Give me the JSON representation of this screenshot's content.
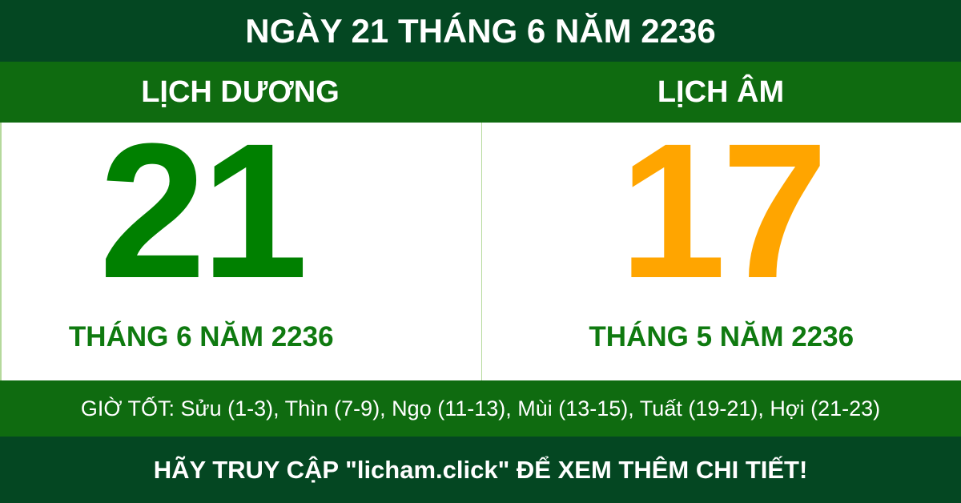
{
  "title": "NGÀY 21 THÁNG 6 NĂM 2236",
  "solar": {
    "label": "LỊCH DƯƠNG",
    "day": "21",
    "month_year": "THÁNG 6 NĂM 2236"
  },
  "lunar": {
    "label": "LỊCH ÂM",
    "day": "17",
    "month_year": "THÁNG 5 NĂM 2236"
  },
  "good_hours": "GIỜ TỐT: Sửu (1-3), Thìn (7-9), Ngọ (11-13), Mùi (13-15), Tuất (19-21), Hợi (21-23)",
  "footer": "HÃY TRUY CẬP \"licham.click\" ĐỂ XEM THÊM CHI TIẾT!",
  "colors": {
    "dark_green": "#044722",
    "band_green": "#0f6b10",
    "solar_day": "#008000",
    "lunar_day": "#ffa500"
  }
}
